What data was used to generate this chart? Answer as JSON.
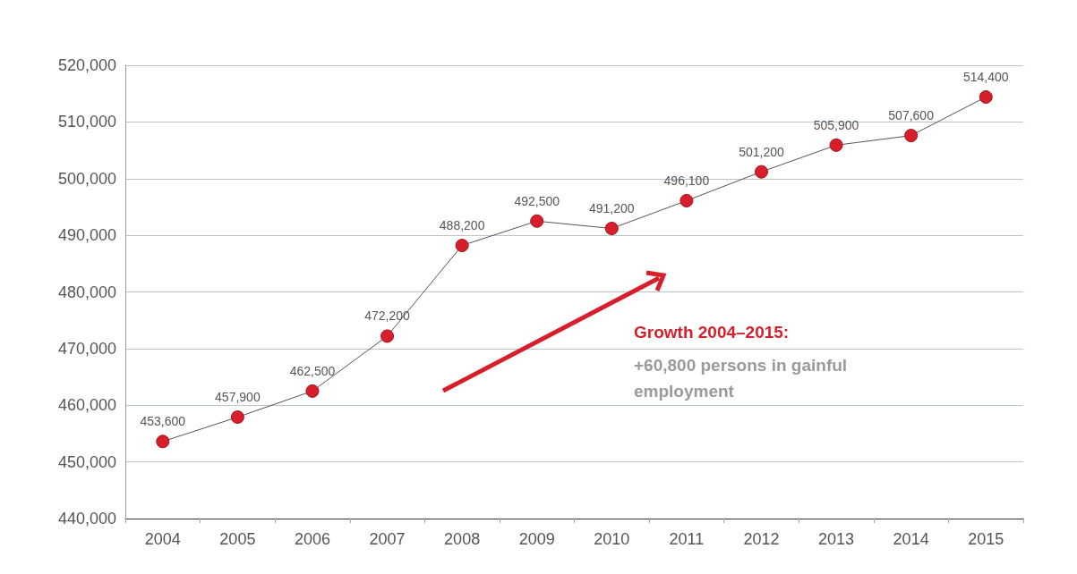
{
  "chart_data": {
    "type": "line",
    "categories": [
      "2004",
      "2005",
      "2006",
      "2007",
      "2008",
      "2009",
      "2010",
      "2011",
      "2012",
      "2013",
      "2014",
      "2015"
    ],
    "series": [
      {
        "color": "#d71f2b",
        "values": [
          453600,
          457900,
          462500,
          472200,
          488200,
          492500,
          491200,
          496100,
          501200,
          505900,
          507600,
          514400
        ],
        "value_labels": [
          "453,600",
          "457,900",
          "462,500",
          "472,200",
          "488,200",
          "492,500",
          "491,200",
          "496,100",
          "501,200",
          "505,900",
          "507,600",
          "514,400"
        ]
      }
    ],
    "ylim": [
      440000,
      520000
    ],
    "yticks": [
      {
        "value": 440000,
        "label": "440,000"
      },
      {
        "value": 450000,
        "label": "450,000"
      },
      {
        "value": 460000,
        "label": "460,000"
      },
      {
        "value": 470000,
        "label": "470,000"
      },
      {
        "value": 480000,
        "label": "480,000"
      },
      {
        "value": 490000,
        "label": "490,000"
      },
      {
        "value": 500000,
        "label": "500,000"
      },
      {
        "value": 510000,
        "label": "510,000"
      },
      {
        "value": 520000,
        "label": "520,000"
      }
    ],
    "grid": "y",
    "marker": "circle",
    "line_style": "solid",
    "annotations": [
      "Growth 2004–2015:",
      "+60,800 persons in gainful employment"
    ]
  }
}
